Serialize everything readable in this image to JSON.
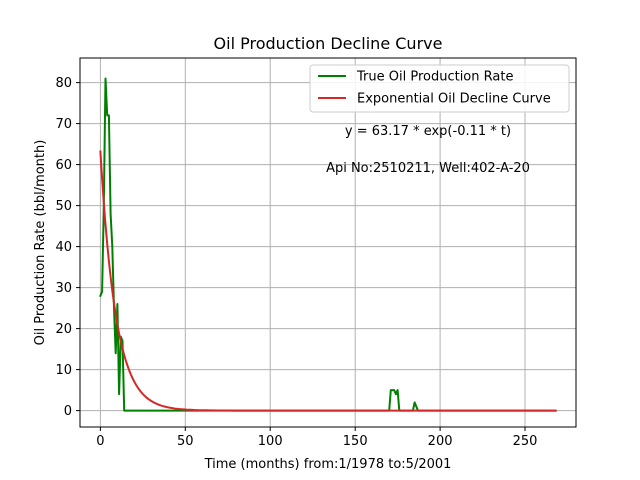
{
  "chart_data": {
    "type": "line",
    "title": "Oil Production Decline Curve",
    "xlabel": "Time (months) from:1/1978 to:5/2001",
    "ylabel": "Oil Production Rate (bbl/month)",
    "xlim": [
      -12,
      280
    ],
    "ylim": [
      -4,
      86
    ],
    "xticks": [
      0,
      50,
      100,
      150,
      200,
      250
    ],
    "yticks": [
      0,
      10,
      20,
      30,
      40,
      50,
      60,
      70,
      80
    ],
    "grid": true,
    "legend_position": "top-right",
    "annotations": [
      "y = 63.17 * exp(-0.11 * t)",
      "Api No:2510211, Well:402-A-20"
    ],
    "series": [
      {
        "name": "True Oil Production Rate",
        "color": "#008000",
        "points": [
          [
            0,
            28
          ],
          [
            1,
            29
          ],
          [
            2,
            50
          ],
          [
            3,
            81
          ],
          [
            4,
            72
          ],
          [
            5,
            72
          ],
          [
            6,
            48
          ],
          [
            7,
            40
          ],
          [
            8,
            25
          ],
          [
            9,
            14
          ],
          [
            10,
            26
          ],
          [
            11,
            4
          ],
          [
            12,
            18
          ],
          [
            13,
            17
          ],
          [
            14,
            0
          ],
          [
            170,
            0
          ],
          [
            171,
            5
          ],
          [
            172,
            5
          ],
          [
            173,
            5
          ],
          [
            174,
            4
          ],
          [
            175,
            5
          ],
          [
            176,
            0
          ],
          [
            184,
            0
          ],
          [
            185,
            2
          ],
          [
            186,
            1
          ],
          [
            187,
            0
          ],
          [
            268,
            0
          ]
        ]
      },
      {
        "name": "Exponential Oil Decline Curve",
        "color": "#d62728",
        "function": "exponential",
        "a": 63.17,
        "b": 0.11,
        "t_start": 0,
        "t_end": 268
      }
    ]
  }
}
